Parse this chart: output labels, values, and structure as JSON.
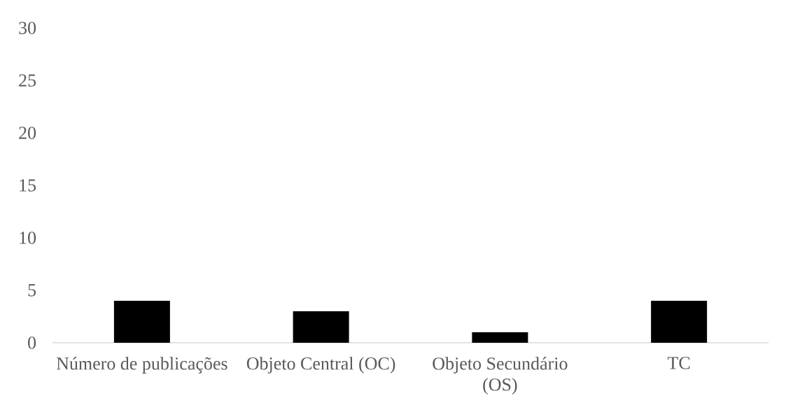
{
  "chart_data": {
    "type": "bar",
    "categories": [
      "Número de publicações",
      "Objeto Central (OC)",
      "Objeto Secundário (OS)",
      "TC"
    ],
    "values": [
      4,
      3,
      1,
      4
    ],
    "color": "#000000",
    "ylim": [
      0,
      30
    ],
    "yticks": [
      0,
      5,
      10,
      15,
      20,
      25,
      30
    ]
  }
}
